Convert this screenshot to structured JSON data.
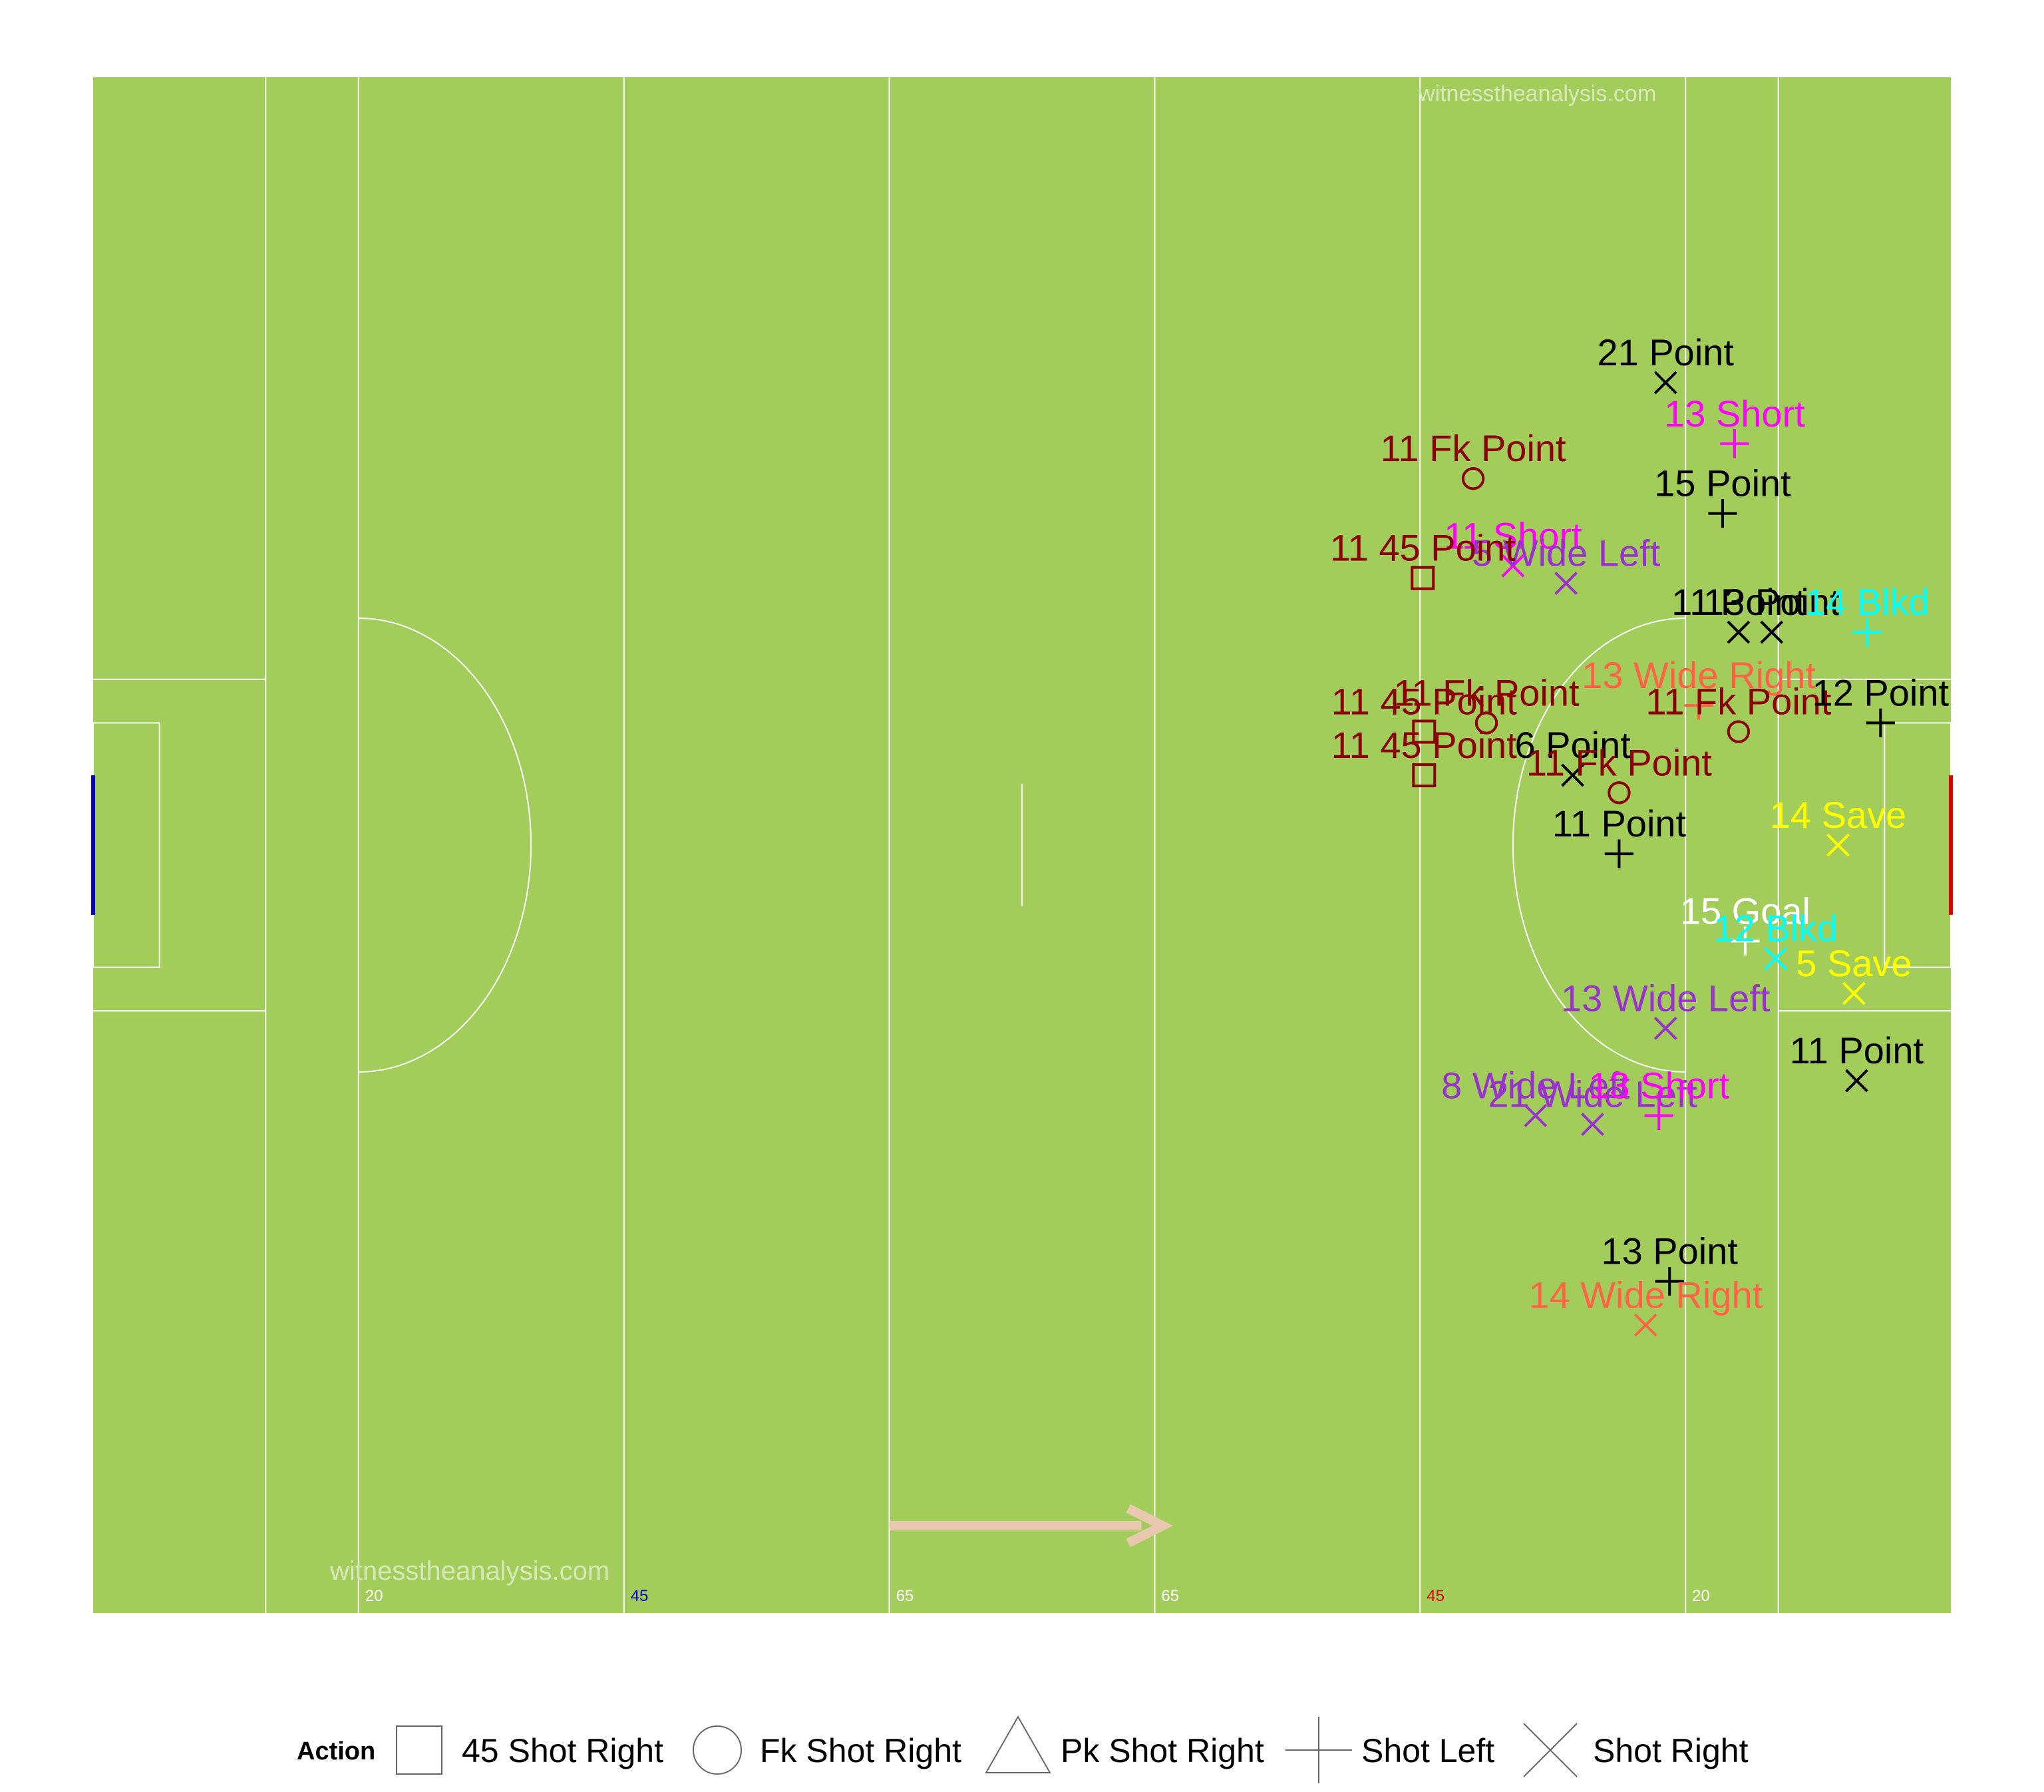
{
  "watermarks": {
    "top": "witnesstheanalysis.com",
    "bottom": "witnesstheanalysis.com"
  },
  "chart_data": {
    "type": "scatter",
    "title": "",
    "xlabel": "",
    "ylabel": "",
    "x_unit": "metres along pitch (0 = left end line)",
    "y_unit": "metres across pitch (0 = bottom touchline)",
    "xlim": [
      0,
      140
    ],
    "ylim": [
      0,
      88
    ],
    "grid": false,
    "legend_position": "bottom",
    "pitch": {
      "surface_color": "#A2CD5A",
      "line_color": "#FFFFFF",
      "left_goal_color": "#0000CD",
      "right_goal_color": "#E00000",
      "attack_direction": "right",
      "arrow_color": "#E8C9B0",
      "line_labels": [
        {
          "x": 20,
          "text": "20",
          "color": "#FFFFFF"
        },
        {
          "x": 40,
          "text": "45",
          "color": "#0000CD"
        },
        {
          "x": 60,
          "text": "65",
          "color": "#FFFFFF"
        },
        {
          "x": 80,
          "text": "65",
          "color": "#FFFFFF"
        },
        {
          "x": 100,
          "text": "45",
          "color": "#E00000"
        },
        {
          "x": 120,
          "text": "20",
          "color": "#FFFFFF"
        }
      ]
    },
    "legend": {
      "title": "Action",
      "items": [
        {
          "shape": "square",
          "label": "45 Shot Right"
        },
        {
          "shape": "circle",
          "label": "Fk Shot Right"
        },
        {
          "shape": "triangle",
          "label": "Pk Shot Right"
        },
        {
          "shape": "plus",
          "label": "Shot Left"
        },
        {
          "shape": "cross",
          "label": "Shot Right"
        }
      ]
    },
    "colors": {
      "Point": "#000000",
      "Fk Point": "#8B0000",
      "45 Point": "#8B0000",
      "Short": "#FF00FF",
      "Wide Left": "#9932CC",
      "Wide Right": "#FF6347",
      "Blkd": "#00FFFF",
      "Save": "#FFFF00",
      "Goal": "#FFFFFF"
    },
    "shots": [
      {
        "x": 118.5,
        "y": 70.5,
        "shape": "cross",
        "color": "#000000",
        "label": "21 Point"
      },
      {
        "x": 123.7,
        "y": 67.0,
        "shape": "plus",
        "color": "#FF00FF",
        "label": "13 Short"
      },
      {
        "x": 104.0,
        "y": 65.0,
        "shape": "circle",
        "color": "#8B0000",
        "label": "11 Fk Point"
      },
      {
        "x": 122.8,
        "y": 63.0,
        "shape": "plus",
        "color": "#000000",
        "label": "15 Point"
      },
      {
        "x": 107.0,
        "y": 60.0,
        "shape": "cross",
        "color": "#FF00FF",
        "label": "11 Short"
      },
      {
        "x": 111.0,
        "y": 59.0,
        "shape": "cross",
        "color": "#9932CC",
        "label": "5 Wide Left"
      },
      {
        "x": 100.2,
        "y": 59.3,
        "shape": "square",
        "color": "#8B0000",
        "label": "11 45 Point"
      },
      {
        "x": 124.0,
        "y": 56.2,
        "shape": "cross",
        "color": "#000000",
        "label": "11 Point"
      },
      {
        "x": 126.5,
        "y": 56.2,
        "shape": "cross",
        "color": "#000000",
        "label": "13 Point"
      },
      {
        "x": 133.7,
        "y": 56.2,
        "shape": "plus",
        "color": "#00FFFF",
        "label": "14 Blkd"
      },
      {
        "x": 121.0,
        "y": 52.0,
        "shape": "plus",
        "color": "#FF6347",
        "label": "13 Wide Right"
      },
      {
        "x": 105.0,
        "y": 51.0,
        "shape": "circle",
        "color": "#8B0000",
        "label": "11 Fk Point"
      },
      {
        "x": 124.0,
        "y": 50.5,
        "shape": "circle",
        "color": "#8B0000",
        "label": "11 Fk Point"
      },
      {
        "x": 134.7,
        "y": 51.0,
        "shape": "plus",
        "color": "#000000",
        "label": "12 Point"
      },
      {
        "x": 100.3,
        "y": 50.5,
        "shape": "square",
        "color": "#8B0000",
        "label": "11 45 Point"
      },
      {
        "x": 100.3,
        "y": 48.0,
        "shape": "square",
        "color": "#8B0000",
        "label": "11 45 Point"
      },
      {
        "x": 111.5,
        "y": 48.0,
        "shape": "cross",
        "color": "#000000",
        "label": "6 Point"
      },
      {
        "x": 115.0,
        "y": 47.0,
        "shape": "circle",
        "color": "#8B0000",
        "label": "11 Fk Point"
      },
      {
        "x": 131.5,
        "y": 44.0,
        "shape": "cross",
        "color": "#FFFF00",
        "label": "14 Save"
      },
      {
        "x": 115.0,
        "y": 43.5,
        "shape": "plus",
        "color": "#000000",
        "label": "11 Point"
      },
      {
        "x": 124.5,
        "y": 38.5,
        "shape": "plus",
        "color": "#FFFFFF",
        "label": "15 Goal"
      },
      {
        "x": 126.8,
        "y": 37.5,
        "shape": "cross",
        "color": "#00FFFF",
        "label": "12 Blkd"
      },
      {
        "x": 132.7,
        "y": 35.5,
        "shape": "cross",
        "color": "#FFFF00",
        "label": "5 Save"
      },
      {
        "x": 118.5,
        "y": 33.5,
        "shape": "cross",
        "color": "#9932CC",
        "label": "13 Wide Left"
      },
      {
        "x": 132.9,
        "y": 30.5,
        "shape": "cross",
        "color": "#000000",
        "label": "11 Point"
      },
      {
        "x": 108.7,
        "y": 28.5,
        "shape": "cross",
        "color": "#9932CC",
        "label": "8 Wide Left"
      },
      {
        "x": 113.0,
        "y": 28.0,
        "shape": "cross",
        "color": "#9932CC",
        "label": "21 Wide Left"
      },
      {
        "x": 118.0,
        "y": 28.5,
        "shape": "plus",
        "color": "#FF00FF",
        "label": "13 Short"
      },
      {
        "x": 118.8,
        "y": 19.0,
        "shape": "plus",
        "color": "#000000",
        "label": "13 Point"
      },
      {
        "x": 117.0,
        "y": 16.5,
        "shape": "cross",
        "color": "#FF6347",
        "label": "14 Wide Right"
      }
    ]
  }
}
